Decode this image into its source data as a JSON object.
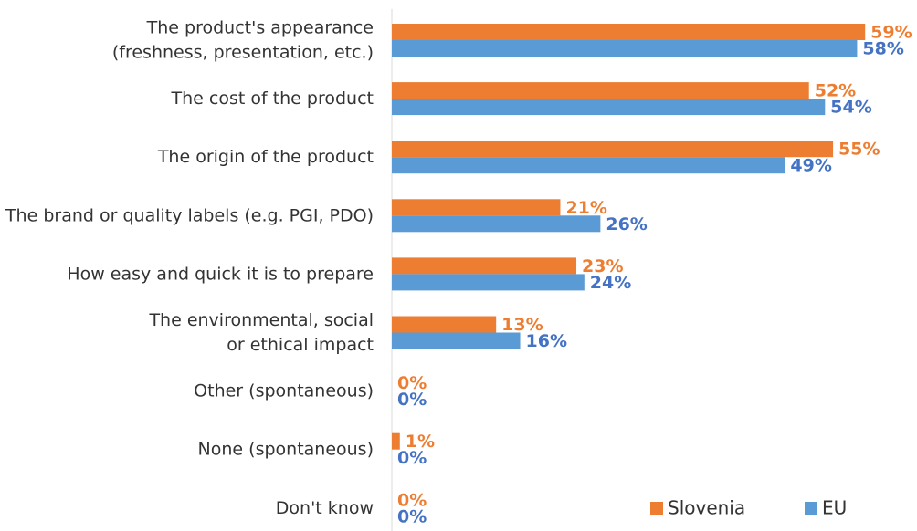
{
  "chart_data": {
    "type": "bar",
    "orientation": "horizontal",
    "categories": [
      [
        "The product's appearance",
        "(freshness, presentation, etc.)"
      ],
      [
        "The cost of the product"
      ],
      [
        "The origin of the product"
      ],
      [
        "The brand or quality labels (e.g. PGI, PDO)"
      ],
      [
        "How easy and quick it is to prepare"
      ],
      [
        "The environmental, social",
        "or ethical impact"
      ],
      [
        "Other (spontaneous)"
      ],
      [
        "None (spontaneous)"
      ],
      [
        "Don't know"
      ]
    ],
    "series": [
      {
        "name": "Slovenia",
        "color": "#ed7d31",
        "label_color": "#ed7d31",
        "values": [
          59,
          52,
          55,
          21,
          23,
          13,
          0,
          1,
          0
        ],
        "value_labels": [
          "59%",
          "52%",
          "55%",
          "21%",
          "23%",
          "13%",
          "0%",
          "1%",
          "0%"
        ]
      },
      {
        "name": "EU",
        "color": "#5b9bd5",
        "label_color": "#4472c4",
        "values": [
          58,
          54,
          49,
          26,
          24,
          16,
          0,
          0,
          0
        ],
        "value_labels": [
          "58%",
          "54%",
          "49%",
          "26%",
          "24%",
          "16%",
          "0%",
          "0%",
          "0%"
        ]
      }
    ],
    "xlim": [
      0,
      60
    ],
    "legend": "lower right"
  }
}
